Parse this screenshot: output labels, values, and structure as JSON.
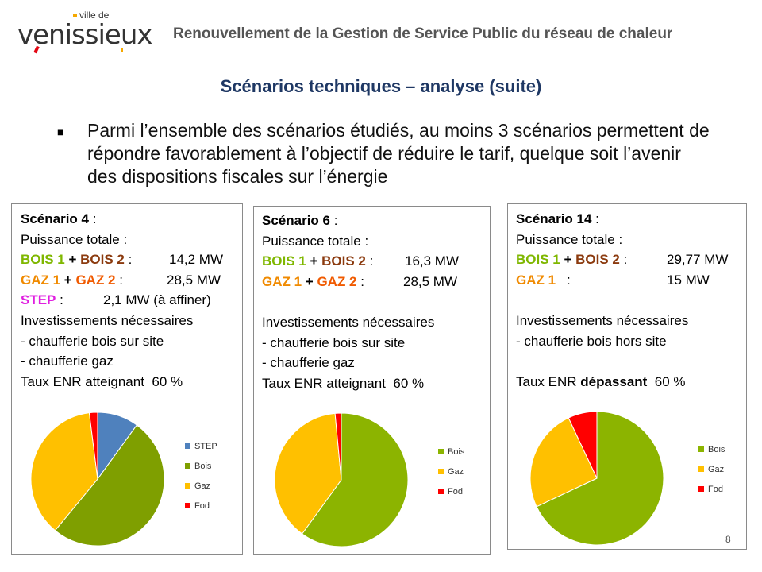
{
  "header": {
    "logo_small": "ville de",
    "logo_main": "venissieux",
    "title": "Renouvellement de la Gestion de Service Public du réseau de chaleur"
  },
  "slide_title": "Scénarios techniques – analyse (suite)",
  "bullet": "Parmi l’ensemble des scénarios étudiés, au moins 3 scénarios permettent de répondre favorablement à l’objectif de réduire le tarif, quelque soit l’avenir des dispositions fiscales sur l’énergie",
  "scenarios": [
    {
      "title": "Scénario 4",
      "colon": " :",
      "power_label": "Puissance totale  :",
      "bois1": "BOIS 1",
      "bois2": "BOIS 2",
      "bois_value": "14,2 MW",
      "gaz1": "GAZ 1",
      "gaz2": "GAZ 2",
      "gaz_value": "28,5 MW",
      "step": "STEP",
      "step_value": "2,1 MW (à affiner)",
      "invest_label": "Investissements nécessaires",
      "invest_1": "- chaufferie bois sur site",
      "invest_2": "- chaufferie gaz",
      "enr_prefix": "Taux ENR ",
      "enr_word": "atteignant",
      "enr_value": "60 %"
    },
    {
      "title": "Scénario 6",
      "colon": " :",
      "power_label": "Puissance totale  :",
      "bois1": "BOIS 1",
      "bois2": "BOIS 2",
      "bois_value": "16,3 MW",
      "gaz1": "GAZ 1",
      "gaz2": "GAZ 2",
      "gaz_value": "28,5 MW",
      "invest_label": "Investissements nécessaires",
      "invest_1": "- chaufferie bois sur site",
      "invest_2": "- chaufferie gaz",
      "enr_prefix": "Taux ENR ",
      "enr_word": "atteignant",
      "enr_value": "60 %"
    },
    {
      "title": "Scénario 14",
      "colon": "  :",
      "power_label": "Puissance totale  :",
      "bois1": "BOIS 1",
      "bois2": "BOIS 2",
      "bois_value": "29,77 MW",
      "gaz1": "GAZ 1",
      "gaz_value": "15 MW",
      "invest_label": "Investissements nécessaires",
      "invest_1": "- chaufferie bois hors site",
      "enr_prefix": "Taux ENR ",
      "enr_word": "dépassant",
      "enr_value": "60 %"
    }
  ],
  "chart_data": [
    {
      "type": "pie",
      "categories": [
        "STEP",
        "Bois",
        "Gaz",
        "Fod"
      ],
      "values": [
        10,
        51,
        37,
        2
      ],
      "colors": [
        "#4f81bd",
        "#7f9f00",
        "#ffc000",
        "#ff0000"
      ],
      "legend": "right"
    },
    {
      "type": "pie",
      "categories": [
        "Bois",
        "Gaz",
        "Fod"
      ],
      "values": [
        60,
        38.5,
        1.5
      ],
      "colors": [
        "#8cb400",
        "#ffc000",
        "#ff0000"
      ],
      "legend": "right"
    },
    {
      "type": "pie",
      "categories": [
        "Bois",
        "Gaz",
        "Fod"
      ],
      "values": [
        68,
        25,
        7
      ],
      "colors": [
        "#8cb400",
        "#ffc000",
        "#ff0000"
      ],
      "legend": "right"
    }
  ],
  "page_number": "8"
}
